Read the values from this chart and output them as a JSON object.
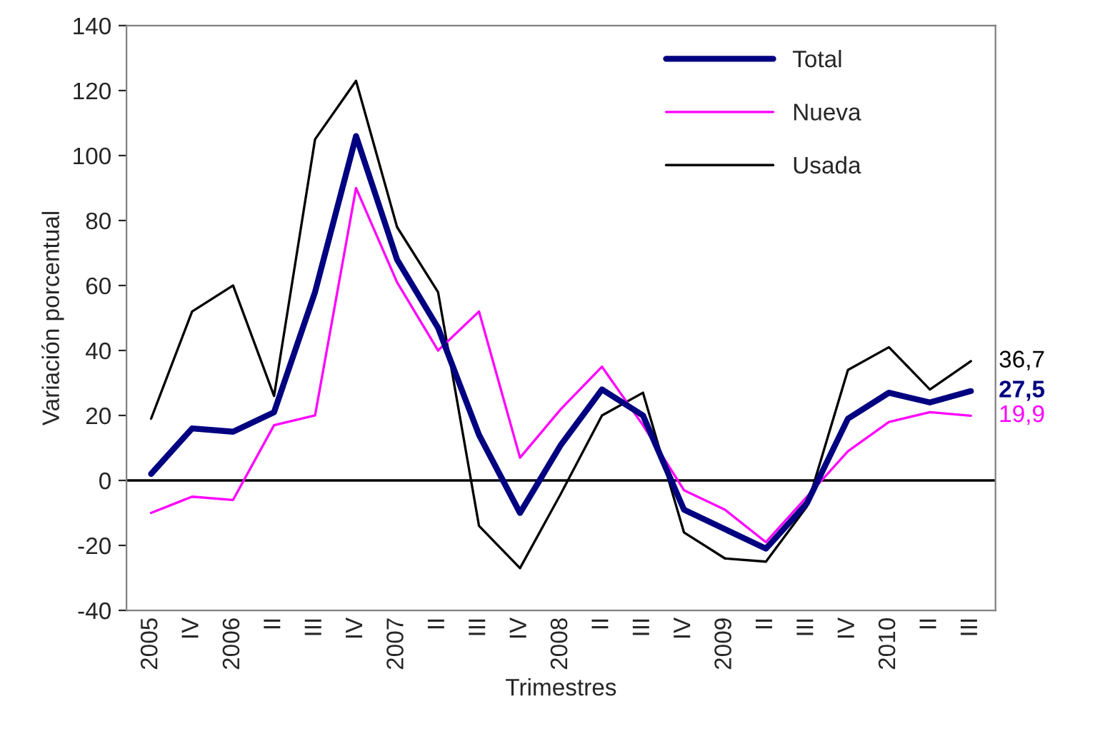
{
  "chart_data": {
    "type": "line",
    "xlabel": "Trimestres",
    "ylabel": "Variación porcentual",
    "categories": [
      "2005",
      "IV",
      "2006",
      "II",
      "III",
      "IV",
      "2007",
      "II",
      "III",
      "IV",
      "2008",
      "II",
      "III",
      "IV",
      "2009",
      "II",
      "III",
      "IV",
      "2010",
      "II",
      "III"
    ],
    "series": [
      {
        "name": "Total",
        "color": "#000080",
        "values": [
          2,
          16,
          15,
          21,
          58,
          106,
          68,
          47,
          14,
          -10,
          11,
          28,
          20,
          -9,
          -15,
          -21,
          -7,
          19,
          27,
          24,
          27.5
        ],
        "value_labels": [
          null,
          null,
          null,
          null,
          null,
          null,
          null,
          null,
          null,
          null,
          null,
          null,
          null,
          null,
          null,
          null,
          null,
          null,
          null,
          null,
          "27,5"
        ]
      },
      {
        "name": "Nueva",
        "color": "#ff00ff",
        "values": [
          -10,
          -5,
          -6,
          17,
          20,
          90,
          61,
          40,
          52,
          7,
          22,
          35,
          17,
          -3,
          -9,
          -19,
          -5,
          9,
          18,
          21,
          19.9
        ],
        "value_labels": [
          null,
          null,
          null,
          null,
          null,
          null,
          null,
          null,
          null,
          null,
          null,
          null,
          null,
          null,
          null,
          null,
          null,
          null,
          null,
          null,
          "19,9"
        ]
      },
      {
        "name": "Usada",
        "color": "#000000",
        "values": [
          19,
          52,
          60,
          26,
          105,
          123,
          78,
          58,
          -14,
          -27,
          -4,
          20,
          27,
          -16,
          -24,
          -25,
          -8,
          34,
          41,
          28,
          36.7
        ],
        "value_labels": [
          null,
          null,
          null,
          null,
          null,
          null,
          null,
          null,
          null,
          null,
          null,
          null,
          null,
          null,
          null,
          null,
          null,
          null,
          null,
          null,
          "36,7"
        ]
      }
    ],
    "ylim": [
      -40,
      140
    ],
    "yticks": [
      -40,
      -20,
      0,
      20,
      40,
      60,
      80,
      100,
      120,
      140
    ],
    "ref_lines": [
      {
        "axis": "y",
        "value": 0,
        "color": "#000000"
      }
    ],
    "grid": false,
    "legend": "top right",
    "marker": "none",
    "line_style": "solid"
  }
}
